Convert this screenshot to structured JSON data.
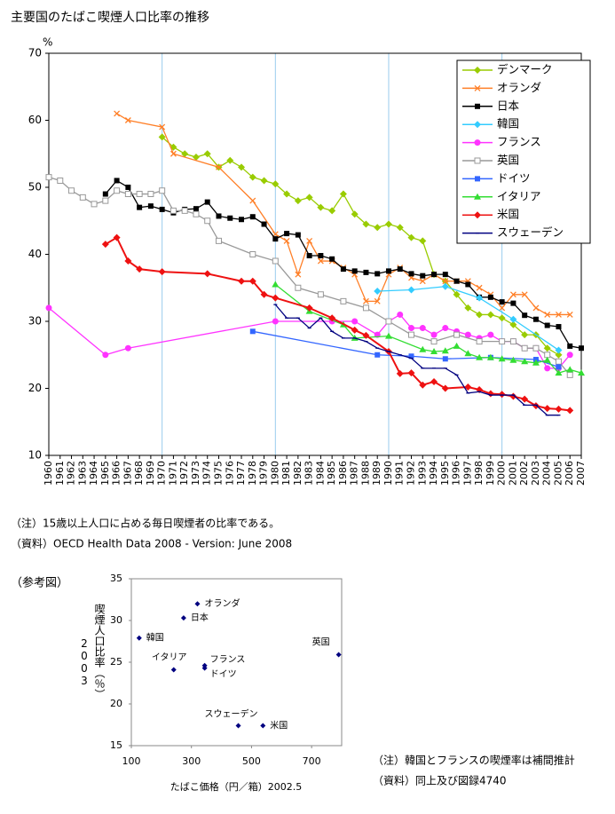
{
  "chart_data": [
    {
      "type": "line",
      "title": "主要国のたばこ喫煙人口比率の推移",
      "y_unit": "%",
      "xlim": [
        1960,
        2007
      ],
      "xticks": [
        1960,
        1961,
        1962,
        1963,
        1964,
        1965,
        1966,
        1967,
        1968,
        1969,
        1970,
        1971,
        1972,
        1973,
        1974,
        1975,
        1976,
        1977,
        1978,
        1979,
        1980,
        1981,
        1982,
        1983,
        1984,
        1985,
        1986,
        1987,
        1988,
        1989,
        1990,
        1991,
        1992,
        1993,
        1994,
        1995,
        1996,
        1997,
        1998,
        1999,
        2000,
        2001,
        2002,
        2003,
        2004,
        2005,
        2006,
        2007
      ],
      "ylim": [
        10,
        70
      ],
      "yticks": [
        10,
        20,
        30,
        40,
        50,
        60,
        70
      ],
      "grid": "x-decades",
      "legend": "top-right",
      "series": [
        {
          "name": "デンマーク",
          "color": "#99cc00",
          "marker": "diamond",
          "x": [
            1970,
            1971,
            1972,
            1973,
            1974,
            1975,
            1976,
            1977,
            1978,
            1979,
            1980,
            1981,
            1982,
            1983,
            1984,
            1985,
            1986,
            1987,
            1988,
            1989,
            1990,
            1991,
            1992,
            1993,
            1994,
            1995,
            1996,
            1997,
            1998,
            1999,
            2000,
            2001,
            2002,
            2003,
            2004,
            2005
          ],
          "values": [
            57.5,
            56,
            55,
            54.5,
            55,
            53,
            54,
            53,
            51.5,
            51,
            50.5,
            49,
            48,
            48.5,
            47,
            46.5,
            49,
            46,
            44.5,
            44,
            44.5,
            44,
            42.5,
            42,
            37,
            36,
            34,
            32,
            31,
            31,
            30.5,
            29.5,
            28,
            28,
            26,
            25
          ]
        },
        {
          "name": "オランダ",
          "color": "#ff7f27",
          "marker": "x",
          "x": [
            1966,
            1967,
            1970,
            1971,
            1975,
            1978,
            1980,
            1981,
            1982,
            1983,
            1984,
            1985,
            1986,
            1987,
            1988,
            1989,
            1990,
            1991,
            1992,
            1993,
            1994,
            1995,
            1996,
            1997,
            1998,
            1999,
            2000,
            2001,
            2002,
            2003,
            2004,
            2005,
            2006
          ],
          "values": [
            61,
            60,
            59,
            55,
            53,
            48,
            43,
            42,
            37,
            42,
            39,
            39,
            38,
            37,
            33,
            33,
            37,
            38,
            36.5,
            36,
            37,
            36,
            36,
            36,
            35,
            34,
            32,
            34,
            34,
            32,
            31,
            31,
            31
          ]
        },
        {
          "name": "日本",
          "color": "#000000",
          "marker": "square",
          "x": [
            1965,
            1966,
            1967,
            1968,
            1969,
            1970,
            1971,
            1972,
            1973,
            1974,
            1975,
            1976,
            1977,
            1978,
            1979,
            1980,
            1981,
            1982,
            1983,
            1984,
            1985,
            1986,
            1987,
            1988,
            1989,
            1990,
            1991,
            1992,
            1993,
            1994,
            1995,
            1996,
            1997,
            1998,
            1999,
            2000,
            2001,
            2002,
            2003,
            2004,
            2005,
            2006,
            2007
          ],
          "values": [
            49,
            51,
            50,
            47,
            47.2,
            46.7,
            46.2,
            46.7,
            46.8,
            47.8,
            45.7,
            45.4,
            45.2,
            45.6,
            44.5,
            42.3,
            43.1,
            42.9,
            39.8,
            39.8,
            39.3,
            37.8,
            37.5,
            37.3,
            37.1,
            37.5,
            37.8,
            37.1,
            36.8,
            37,
            37,
            36,
            35.5,
            33.6,
            33.6,
            32.9,
            32.7,
            30.9,
            30.3,
            29.4,
            29.2,
            26.3,
            26
          ]
        },
        {
          "name": "韓国",
          "color": "#33ccff",
          "marker": "diamond",
          "x": [
            1989,
            1992,
            1995,
            1998,
            2001,
            2005
          ],
          "values": [
            34.5,
            34.7,
            35.2,
            33.5,
            30.3,
            25.7
          ]
        },
        {
          "name": "フランス",
          "color": "#ff33ff",
          "marker": "circle",
          "x": [
            1960,
            1965,
            1967,
            1980,
            1985,
            1987,
            1989,
            1990,
            1991,
            1992,
            1993,
            1994,
            1995,
            1996,
            1997,
            1998,
            1999,
            2000,
            2001,
            2002,
            2003,
            2004,
            2005,
            2006
          ],
          "values": [
            32,
            25,
            26,
            30,
            30,
            30,
            28,
            30,
            31,
            29,
            29,
            28,
            29,
            28.5,
            28,
            27.5,
            28,
            27,
            27,
            26,
            26,
            23,
            23,
            25
          ]
        },
        {
          "name": "英国",
          "color": "#999999",
          "marker": "square-open",
          "x": [
            1960,
            1961,
            1962,
            1963,
            1964,
            1965,
            1966,
            1967,
            1968,
            1969,
            1970,
            1971,
            1972,
            1973,
            1974,
            1975,
            1978,
            1980,
            1982,
            1984,
            1986,
            1988,
            1990,
            1992,
            1994,
            1996,
            1998,
            2000,
            2001,
            2002,
            2003,
            2004,
            2005,
            2006
          ],
          "values": [
            51.5,
            51,
            49.5,
            48.5,
            47.5,
            48,
            49.5,
            49,
            49,
            49,
            49.5,
            46.5,
            46.5,
            46,
            45,
            42,
            40,
            39,
            35,
            34,
            33,
            32,
            30,
            28,
            27,
            28,
            27,
            27,
            27,
            26,
            26,
            25,
            24,
            22
          ]
        },
        {
          "name": "ドイツ",
          "color": "#3366ff",
          "marker": "square",
          "x": [
            1978,
            1989,
            1992,
            1995,
            1999,
            2003,
            2005
          ],
          "values": [
            28.5,
            25,
            24.8,
            24.4,
            24.6,
            24.3,
            23.2
          ]
        },
        {
          "name": "イタリア",
          "color": "#33dd33",
          "marker": "triangle",
          "x": [
            1980,
            1983,
            1986,
            1987,
            1990,
            1993,
            1994,
            1995,
            1996,
            1997,
            1998,
            1999,
            2000,
            2001,
            2002,
            2003,
            2004,
            2005,
            2006,
            2007
          ],
          "values": [
            35.5,
            31.5,
            29.5,
            27.5,
            27.8,
            25.8,
            25.5,
            25.6,
            26.3,
            25.2,
            24.6,
            24.6,
            24.4,
            24.2,
            24,
            23.8,
            24.2,
            22.3,
            22.8,
            22.3
          ]
        },
        {
          "name": "米国",
          "color": "#ee1111",
          "marker": "diamond",
          "x": [
            1965,
            1966,
            1967,
            1968,
            1970,
            1974,
            1977,
            1978,
            1979,
            1980,
            1983,
            1985,
            1987,
            1988,
            1990,
            1991,
            1992,
            1993,
            1994,
            1995,
            1997,
            1998,
            1999,
            2000,
            2001,
            2002,
            2003,
            2004,
            2005,
            2006
          ],
          "values": [
            41.5,
            42.5,
            39,
            37.8,
            37.4,
            37.1,
            36,
            36,
            34,
            33.5,
            32,
            30.5,
            28.7,
            27.9,
            25.5,
            22.2,
            22.3,
            20.5,
            21,
            20,
            20.2,
            19.8,
            19.2,
            19.1,
            18.8,
            18.4,
            17.4,
            17,
            16.9,
            16.7
          ]
        },
        {
          "name": "スウェーデン",
          "color": "#000080",
          "marker": "dash",
          "x": [
            1980,
            1981,
            1982,
            1983,
            1984,
            1985,
            1986,
            1987,
            1988,
            1989,
            1990,
            1991,
            1992,
            1993,
            1994,
            1995,
            1996,
            1997,
            1998,
            1999,
            2000,
            2001,
            2002,
            2003,
            2004,
            2005
          ],
          "values": [
            32.5,
            30.5,
            30.5,
            29,
            30.5,
            28.5,
            27.5,
            27.5,
            27,
            26,
            25.5,
            25,
            24.5,
            23,
            23,
            23,
            22,
            19.3,
            19.5,
            19,
            19,
            19,
            17.5,
            17.5,
            16,
            16
          ]
        }
      ]
    },
    {
      "type": "scatter",
      "title": "（参考図）",
      "x_label": "たばこ価格（円／箱）2002.5",
      "y_label": "喫煙人口比率（％）",
      "y_label_year": "2003",
      "xlim": [
        100,
        800
      ],
      "xticks": [
        100,
        300,
        500,
        700
      ],
      "ylim": [
        15,
        35
      ],
      "yticks": [
        15,
        20,
        25,
        30,
        35
      ],
      "color": "#000080",
      "labels": [
        "韓国",
        "日本",
        "オランダ",
        "イタリア",
        "フランス",
        "ドイツ",
        "英国",
        "スウェーデン",
        "米国"
      ],
      "x": [
        126,
        274,
        320,
        241,
        344,
        344,
        790,
        456,
        538
      ],
      "values": [
        27.9,
        30.3,
        32,
        24.1,
        24.6,
        24.3,
        25.9,
        17.4,
        17.4
      ]
    }
  ],
  "notes": [
    "（注）15歳以上人口に占める毎日喫煙者の比率である。",
    "（資料）OECD Health Data 2008 - Version: June 2008"
  ],
  "scatter_notes": [
    "（注）韓国とフランスの喫煙率は補間推計",
    "（資料）同上及び図録4740"
  ]
}
